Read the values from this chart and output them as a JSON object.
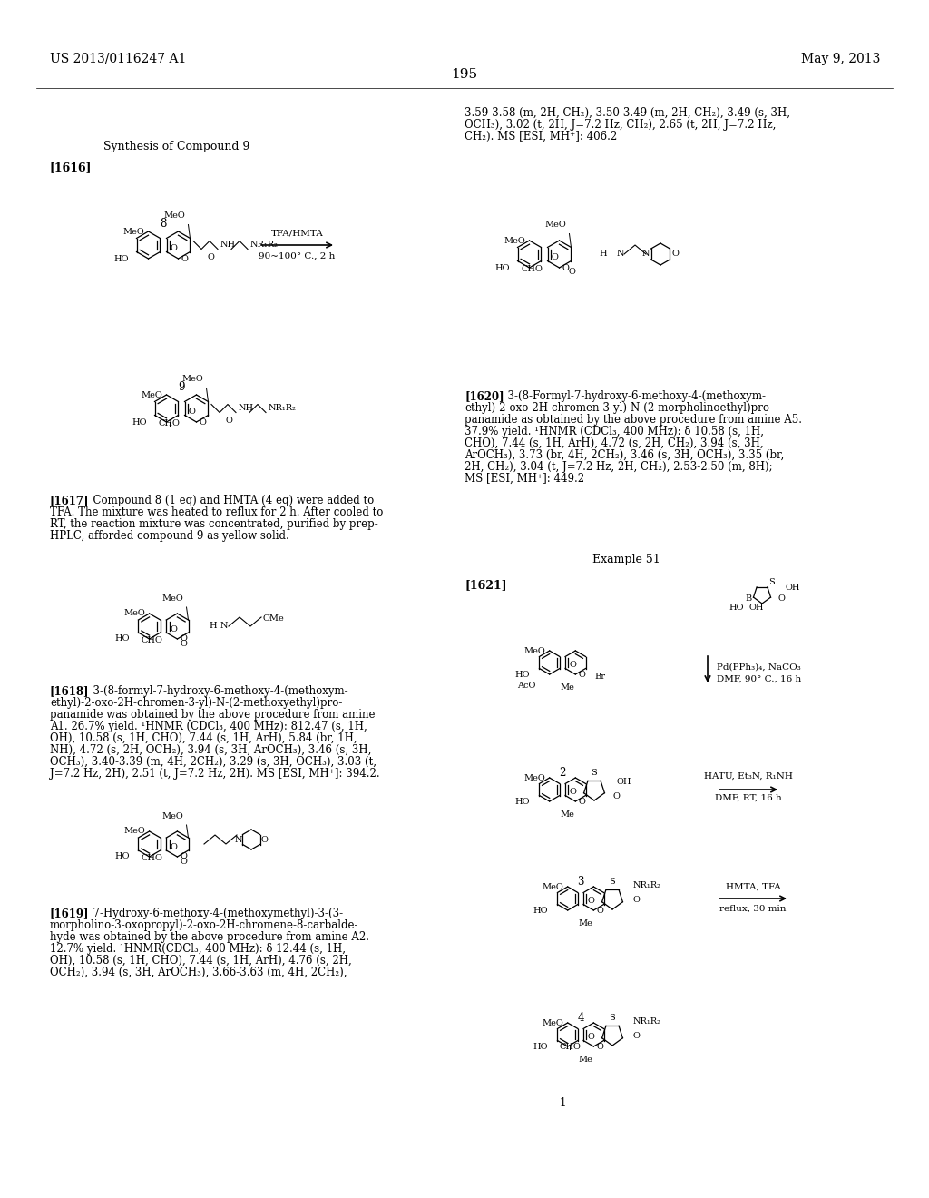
{
  "page_header_left": "US 2013/0116247 A1",
  "page_header_right": "May 9, 2013",
  "page_number": "195",
  "background_color": "#ffffff",
  "text_color": "#000000",
  "title_synthesis": "Synthesis of Compound 9",
  "ref1616": "[1616]",
  "ref1617_text": "[1617] Compound 8 (1 eq) and HMTA (4 eq) were added to TFA. The mixture was heated to reflux for 2 h. After cooled to RT, the reaction mixture was concentrated, purified by prep-HPLC, afforded compound 9 as yellow solid.",
  "ref1618_text": "[1618]  3-(8-formyl-7-hydroxy-6-methoxy-4-(methoxymethyl)-2-oxo-2H-chromen-3-yl)-N-(2-methoxyethyl)propanamide was obtained by the above procedure from amine A1. 26.7% yield. ¹HNMR (CDCl₃, 400 MHz): 812.47 (s, 1H, OH), 10.58 (s, 1H, CHO), 7.44 (s, 1H, ArH), 5.84 (br, 1H, NH), 4.72 (s, 2H, OCH₂), 3.94 (s, 3H, ArOCH₃), 3.46 (s, 3H, OCH₃), 3.40-3.39 (m, 4H, 2CH₂), 3.29 (s, 3H, OCH₃), 3.03 (t, J=7.2 Hz, 2H), 2.51 (t, J=7.2 Hz, 2H). MS [ESI, MH⁺]: 394.2.",
  "ref1619_text": "[1619]  7-Hydroxy-6-methoxy-4-(methoxymethyl)-3-(3-morpholino-3-oxopropyl)-2-oxo-2H-chromene-8-carbaldehyde was obtained by the above procedure from amine A2. 12.7% yield. ¹HNMR(CDCl₃, 400 MHz): δ 12.44 (s, 1H, OH), 10.58 (s, 1H, CHO), 7.44 (s, 1H, ArH), 4.76 (s, 2H, OCH₂), 3.94 (s, 3H, ArOCH₃), 3.66-3.63 (m, 4H, 2CH₂),",
  "ref1619_cont": "3.59-3.58 (m, 2H, CH₂), 3.50-3.49 (m, 2H, CH₂), 3.49 (s, 3H, OCH₃), 3.02 (t, 2H, J=7.2 Hz, CH₂), 2.65 (t, 2H, J=7.2 Hz, CH₂). MS [ESI, MH⁺]: 406.2",
  "ref1620_text": "[1620]  3-(8-Formyl-7-hydroxy-6-methoxy-4-(methoxymethyl)-2-oxo-2H-chromen-3-yl)-N-(2-morpholinoethyl)propanamide as obtained by the above procedure from amine A5. 37.9% yield. ¹HNMR (CDCl₃, 400 MHz): δ 10.58 (s, 1H, CHO), 7.44 (s, 1H, ArH), 4.72 (s, 2H, CH₂), 3.94 (s, 3H, ArOCH₃), 3.73 (br, 4H, 2CH₂), 3.46 (s, 3H, OCH₃), 3.35 (br, 2H, CH₂), 3.04 (t, J=7.2 Hz, 2H, CH₂), 2.53-2.50 (m, 8H); MS [ESI, MH⁺]: 449.2",
  "ref1621_text": "[1621]",
  "example51": "Example 51",
  "reaction_arrow_text1": "TFA/HMTA",
  "reaction_arrow_text2": "90~100° C., 2 h",
  "reaction_arrow_text3": "Pd(PPh₃)₄, NaCO₃",
  "reaction_arrow_text4": "DMF, 90° C., 16 h",
  "reaction_arrow_text5": "HATU, Et₃N, R₁NH",
  "reaction_arrow_text6": "DMF, RT, 16 h",
  "reaction_arrow_text7": "HMTA, TFA",
  "reaction_arrow_text8": "reflux, 30 min"
}
